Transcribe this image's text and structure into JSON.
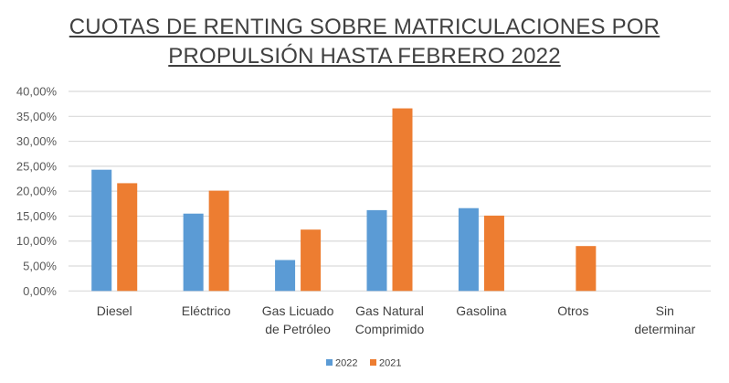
{
  "chart_data": {
    "type": "bar",
    "title_lines": [
      "CUOTAS DE RENTING SOBRE MATRICULACIONES POR",
      "PROPULSIÓN HASTA FEBRERO 2022"
    ],
    "categories": [
      [
        "Diesel"
      ],
      [
        "Eléctrico"
      ],
      [
        "Gas Licuado",
        "de Petróleo"
      ],
      [
        "Gas Natural",
        "Comprimido"
      ],
      [
        "Gasolina"
      ],
      [
        "Otros"
      ],
      [
        "Sin",
        "determinar"
      ]
    ],
    "series": [
      {
        "name": "2022",
        "color": "#5B9BD5",
        "values": [
          24.3,
          15.5,
          6.2,
          16.2,
          16.6,
          0,
          0
        ]
      },
      {
        "name": "2021",
        "color": "#ED7D31",
        "values": [
          21.6,
          20.1,
          12.3,
          36.6,
          15.1,
          9.0,
          0
        ]
      }
    ],
    "yticks": [
      "0,00%",
      "5,00%",
      "10,00%",
      "15,00%",
      "20,00%",
      "25,00%",
      "30,00%",
      "35,00%",
      "40,00%"
    ],
    "ylim": [
      0,
      40
    ],
    "grid": true,
    "legend": "bottom",
    "xlabel": "",
    "ylabel": ""
  }
}
